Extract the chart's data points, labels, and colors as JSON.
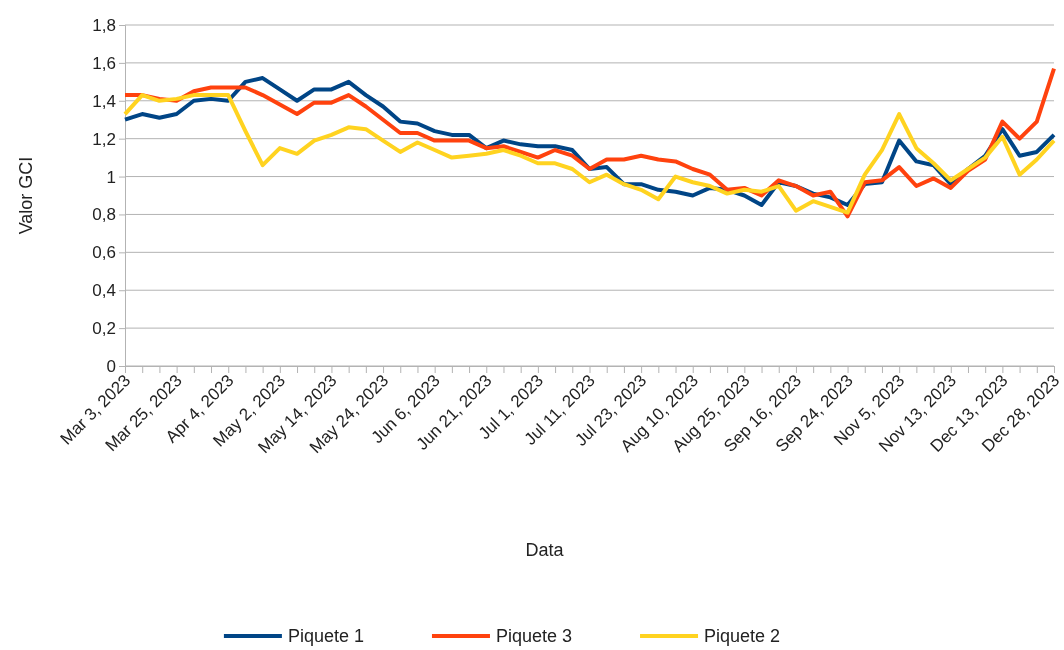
{
  "chart_data": {
    "type": "line",
    "xlabel": "Data",
    "ylabel": "Valor GCI",
    "categories": [
      "Mar 3, 2023",
      null,
      null,
      "Mar 25, 2023",
      null,
      null,
      "Apr 4, 2023",
      null,
      null,
      "May 2, 2023",
      null,
      null,
      "May 14, 2023",
      null,
      null,
      "May 24, 2023",
      null,
      null,
      "Jun 6, 2023",
      null,
      null,
      "Jun 21, 2023",
      null,
      null,
      "Jul 1, 2023",
      null,
      null,
      "Jul 11, 2023",
      null,
      null,
      "Jul 23, 2023",
      null,
      null,
      "Aug 10, 2023",
      null,
      null,
      "Aug 25, 2023",
      null,
      null,
      "Sep 16, 2023",
      null,
      null,
      "Sep 24, 2023",
      null,
      null,
      "Nov 5, 2023",
      null,
      null,
      "Nov 13, 2023",
      null,
      null,
      "Dec 13, 2023",
      null,
      null,
      "Dec 28, 2023"
    ],
    "series": [
      {
        "name": "Piquete 1",
        "color": "#004586",
        "values": [
          1.3,
          1.33,
          1.31,
          1.33,
          1.4,
          1.41,
          1.4,
          1.5,
          1.52,
          1.46,
          1.4,
          1.46,
          1.46,
          1.5,
          1.43,
          1.37,
          1.29,
          1.28,
          1.24,
          1.22,
          1.22,
          1.15,
          1.19,
          1.17,
          1.16,
          1.16,
          1.14,
          1.04,
          1.05,
          0.96,
          0.96,
          0.93,
          0.92,
          0.9,
          0.94,
          0.93,
          0.9,
          0.85,
          0.97,
          0.95,
          0.91,
          0.89,
          0.85,
          0.96,
          0.97,
          1.19,
          1.08,
          1.06,
          0.96,
          1.04,
          1.11,
          1.25,
          1.11,
          1.13,
          1.22
        ]
      },
      {
        "name": "Piquete 3",
        "color": "#ff420e",
        "values": [
          1.43,
          1.43,
          1.41,
          1.4,
          1.45,
          1.47,
          1.47,
          1.47,
          1.43,
          1.38,
          1.33,
          1.39,
          1.39,
          1.43,
          1.37,
          1.3,
          1.23,
          1.23,
          1.19,
          1.19,
          1.19,
          1.15,
          1.16,
          1.13,
          1.1,
          1.14,
          1.11,
          1.04,
          1.09,
          1.09,
          1.11,
          1.09,
          1.08,
          1.04,
          1.01,
          0.93,
          0.94,
          0.9,
          0.98,
          0.95,
          0.9,
          0.92,
          0.79,
          0.97,
          0.98,
          1.05,
          0.95,
          0.99,
          0.94,
          1.03,
          1.09,
          1.29,
          1.2,
          1.29,
          1.57
        ]
      },
      {
        "name": "Piquete 2",
        "color": "#ffd320",
        "values": [
          1.33,
          1.43,
          1.4,
          1.41,
          1.43,
          1.43,
          1.43,
          1.24,
          1.06,
          1.15,
          1.12,
          1.19,
          1.22,
          1.26,
          1.25,
          1.19,
          1.13,
          1.18,
          1.14,
          1.1,
          1.11,
          1.12,
          1.14,
          1.11,
          1.07,
          1.07,
          1.04,
          0.97,
          1.01,
          0.96,
          0.93,
          0.88,
          1.0,
          0.97,
          0.95,
          0.91,
          0.93,
          0.92,
          0.95,
          0.82,
          0.87,
          0.84,
          0.81,
          1.01,
          1.14,
          1.33,
          1.15,
          1.07,
          0.98,
          1.04,
          1.1,
          1.21,
          1.01,
          1.09,
          1.19
        ]
      }
    ],
    "ylim": [
      0,
      1.8
    ],
    "yticks": [
      0,
      {
        "value": 0.2,
        "label": "0,2"
      },
      {
        "value": 0.4,
        "label": "0,4"
      },
      {
        "value": 0.6,
        "label": "0,6"
      },
      {
        "value": 0.8,
        "label": "0,8"
      },
      1,
      {
        "value": 1.2,
        "label": "1,2"
      },
      {
        "value": 1.4,
        "label": "1,4"
      },
      {
        "value": 1.6,
        "label": "1,6"
      },
      {
        "value": 1.8,
        "label": "1,8"
      }
    ],
    "grid": "y",
    "legend": "bottom",
    "line_style": "solid"
  }
}
